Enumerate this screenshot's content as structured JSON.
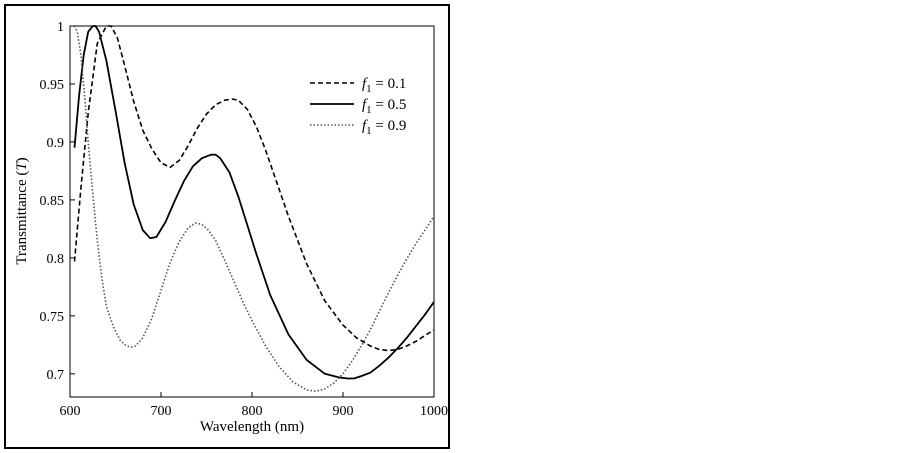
{
  "chart_data": {
    "type": "line",
    "title": "",
    "xlabel": "Wavelength (nm)",
    "ylabel": "Transmittance (T)",
    "ylabel_parts": {
      "prefix": "Transmittance (",
      "symbol": "T",
      "suffix": ")"
    },
    "xlim": [
      600,
      1000
    ],
    "ylim": [
      0.68,
      1.0
    ],
    "xticks": [
      600,
      700,
      800,
      900,
      1000
    ],
    "yticks": [
      0.7,
      0.75,
      0.8,
      0.85,
      0.9,
      0.95,
      1
    ],
    "ytick_labels": [
      "0.7",
      "0.75",
      "0.8",
      "0.85",
      "0.9",
      "0.95",
      "1"
    ],
    "grid": false,
    "legend_position": "top-right",
    "series": [
      {
        "name": "f1 = 0.1",
        "label_symbol": "f",
        "label_subscript": "1",
        "label_value": "= 0.1",
        "style": "dashed",
        "color": "#000000",
        "x": [
          605,
          612,
          620,
          630,
          640,
          645,
          652,
          660,
          670,
          680,
          690,
          700,
          710,
          720,
          730,
          740,
          750,
          760,
          770,
          778,
          785,
          795,
          805,
          815,
          825,
          840,
          860,
          880,
          900,
          915,
          930,
          940,
          950,
          960,
          970,
          980,
          990,
          1000
        ],
        "y": [
          0.797,
          0.86,
          0.925,
          0.985,
          1.0,
          1.0,
          0.99,
          0.966,
          0.935,
          0.91,
          0.894,
          0.882,
          0.878,
          0.884,
          0.897,
          0.912,
          0.924,
          0.932,
          0.936,
          0.937,
          0.936,
          0.928,
          0.913,
          0.893,
          0.87,
          0.836,
          0.795,
          0.763,
          0.742,
          0.731,
          0.724,
          0.721,
          0.72,
          0.721,
          0.724,
          0.728,
          0.733,
          0.738
        ]
      },
      {
        "name": "f1 = 0.5",
        "label_symbol": "f",
        "label_subscript": "1",
        "label_value": "= 0.5",
        "style": "solid",
        "color": "#000000",
        "x": [
          605,
          610,
          615,
          620,
          625,
          628,
          632,
          640,
          650,
          660,
          670,
          680,
          688,
          695,
          705,
          715,
          725,
          735,
          745,
          755,
          760,
          765,
          775,
          785,
          795,
          805,
          820,
          840,
          860,
          880,
          895,
          905,
          912,
          920,
          930,
          940,
          950,
          960,
          970,
          980,
          990,
          1000
        ],
        "y": [
          0.895,
          0.94,
          0.975,
          0.995,
          1.0,
          1.0,
          0.995,
          0.97,
          0.927,
          0.882,
          0.846,
          0.824,
          0.817,
          0.818,
          0.831,
          0.849,
          0.866,
          0.879,
          0.886,
          0.889,
          0.889,
          0.886,
          0.874,
          0.853,
          0.828,
          0.803,
          0.768,
          0.734,
          0.712,
          0.7,
          0.697,
          0.696,
          0.696,
          0.698,
          0.701,
          0.707,
          0.714,
          0.722,
          0.731,
          0.741,
          0.751,
          0.762
        ]
      },
      {
        "name": "f1 = 0.9",
        "label_symbol": "f",
        "label_subscript": "1",
        "label_value": "= 0.9",
        "style": "dotted",
        "color": "#555555",
        "x": [
          605,
          608,
          612,
          616,
          620,
          625,
          630,
          635,
          640,
          648,
          655,
          662,
          668,
          672,
          680,
          690,
          700,
          710,
          720,
          730,
          738,
          745,
          752,
          760,
          770,
          780,
          790,
          800,
          815,
          830,
          845,
          860,
          870,
          880,
          890,
          900,
          910,
          920,
          930,
          940,
          950,
          960,
          970,
          980,
          990,
          1000
        ],
        "y": [
          1.0,
          0.995,
          0.975,
          0.94,
          0.9,
          0.855,
          0.815,
          0.783,
          0.758,
          0.74,
          0.729,
          0.724,
          0.723,
          0.724,
          0.731,
          0.748,
          0.772,
          0.796,
          0.814,
          0.826,
          0.83,
          0.829,
          0.824,
          0.815,
          0.798,
          0.78,
          0.762,
          0.746,
          0.724,
          0.706,
          0.693,
          0.686,
          0.685,
          0.687,
          0.692,
          0.7,
          0.711,
          0.724,
          0.738,
          0.754,
          0.77,
          0.785,
          0.799,
          0.812,
          0.824,
          0.836
        ]
      }
    ]
  }
}
